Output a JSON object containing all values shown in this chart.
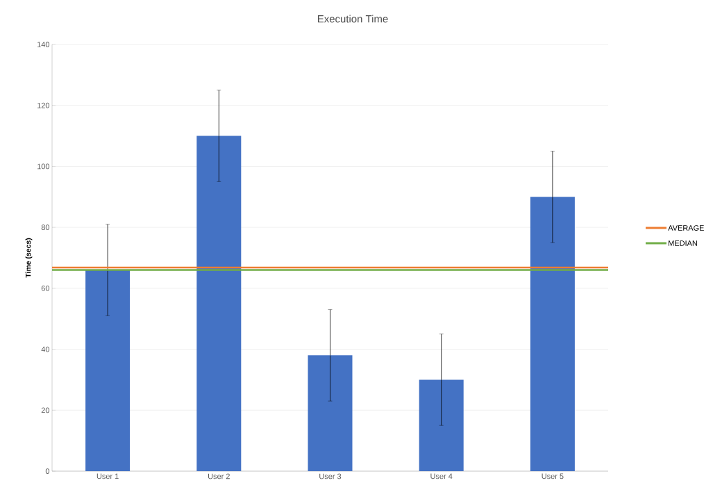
{
  "chart_data": {
    "type": "bar",
    "title": "Execution Time",
    "ylabel": "Time (secs)",
    "categories": [
      "User 1",
      "User 2",
      "User 3",
      "User 4",
      "User 5"
    ],
    "values": [
      66,
      110,
      38,
      30,
      90
    ],
    "errors": [
      15,
      15,
      15,
      15,
      15
    ],
    "color": "#4472c4",
    "ylim": [
      0,
      140
    ],
    "yticks": [
      0,
      20,
      40,
      60,
      80,
      100,
      120,
      140
    ],
    "grid": "y",
    "legend": "right",
    "ref_lines": [
      {
        "axis": "y",
        "value": 66.8,
        "label": "AVERAGE",
        "color": "#ed7d31"
      },
      {
        "axis": "y",
        "value": 66,
        "label": "MEDIAN",
        "color": "#70ad47"
      }
    ]
  }
}
